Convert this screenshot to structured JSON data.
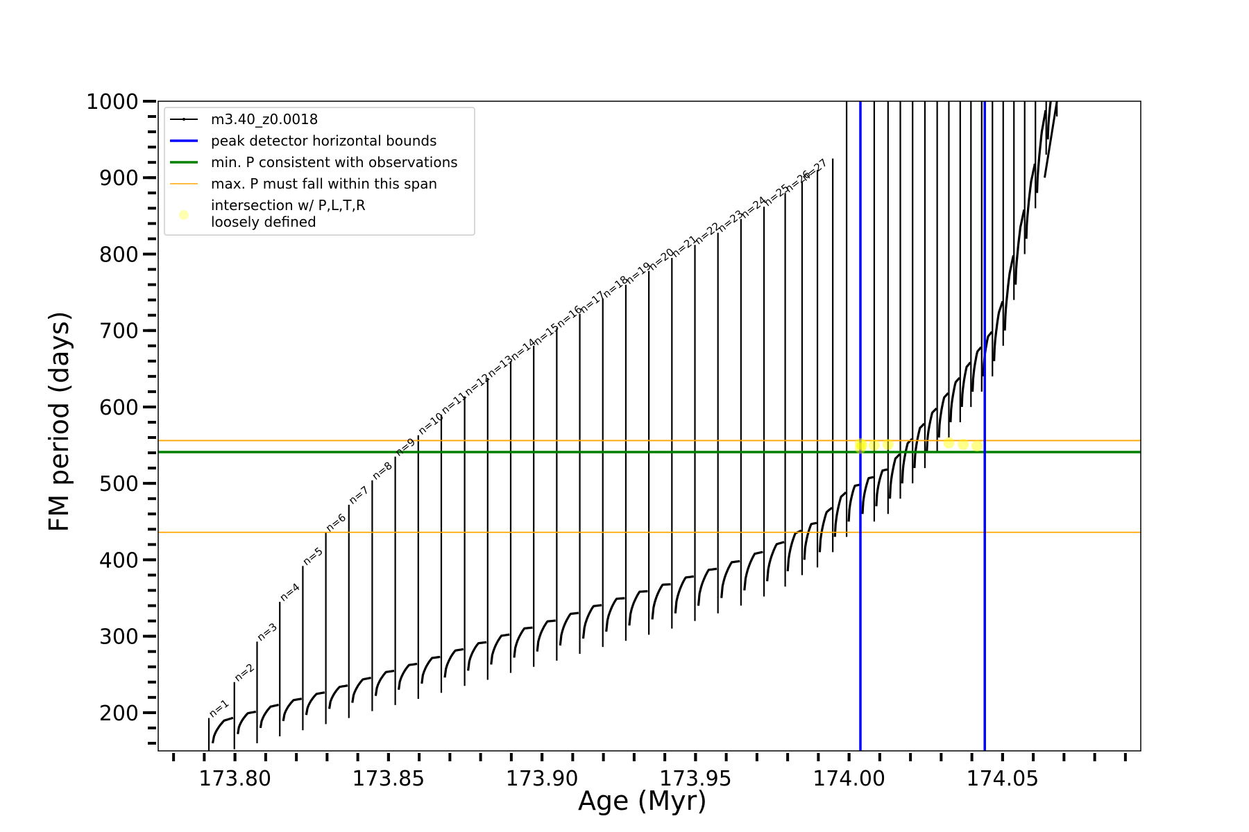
{
  "chart_data": {
    "type": "line",
    "xlabel": "Age (Myr)",
    "ylabel": "FM period (days)",
    "xlim": [
      173.775,
      174.095
    ],
    "ylim": [
      150,
      1000
    ],
    "x_ticks": [
      "173.80",
      "173.85",
      "173.90",
      "173.95",
      "174.00",
      "174.05"
    ],
    "x_tick_values": [
      173.8,
      173.85,
      173.9,
      173.95,
      174.0,
      174.05
    ],
    "y_ticks": [
      "200",
      "300",
      "400",
      "500",
      "600",
      "700",
      "800",
      "900",
      "1000"
    ],
    "y_tick_values": [
      200,
      300,
      400,
      500,
      600,
      700,
      800,
      900,
      1000
    ],
    "series": [
      {
        "name": "m3.40_z0.0018",
        "color": "#000000",
        "pulse_ages": [
          173.7915,
          173.7998,
          173.8072,
          173.8146,
          173.8221,
          173.8296,
          173.8371,
          173.8447,
          173.8522,
          173.8597,
          173.8672,
          173.8748,
          173.8823,
          173.8898,
          173.8973,
          173.9048,
          173.9123,
          173.9198,
          173.9273,
          173.9348,
          173.9423,
          173.9498,
          173.9573,
          173.9648,
          173.9723,
          173.9792,
          173.9847,
          173.9897,
          173.9947,
          173.9992,
          174.0037,
          174.0082,
          174.0127,
          174.0167,
          174.0207,
          174.0247,
          174.0287,
          174.0325,
          174.0362,
          174.0397,
          174.0432,
          174.0467,
          174.0502,
          174.0537,
          174.0572,
          174.0607,
          174.0642,
          174.0677
        ],
        "pulse_base_period": [
          160,
          172,
          180,
          189,
          197,
          205,
          213,
          222,
          230,
          238,
          246,
          255,
          263,
          272,
          280,
          288,
          297,
          306,
          314,
          322,
          330,
          340,
          350,
          360,
          372,
          385,
          400,
          410,
          430,
          450,
          460,
          470,
          480,
          500,
          520,
          540,
          560,
          580,
          600,
          620,
          640,
          660,
          700,
          760,
          820,
          880,
          950,
          1000
        ],
        "pulse_peak_period": [
          193,
          240,
          293,
          345,
          392,
          436,
          472,
          504,
          535,
          563,
          590,
          614,
          638,
          660,
          680,
          703,
          722,
          742,
          760,
          778,
          795,
          812,
          828,
          846,
          862,
          880,
          895,
          910,
          925,
          1000,
          1000,
          1000,
          1000,
          1000,
          1000,
          1000,
          1000,
          1000,
          1000,
          1000,
          1000,
          1000,
          1000,
          1000,
          1000,
          1000,
          1000,
          1000
        ]
      }
    ],
    "n_labels": [
      "n=1",
      "n=2",
      "n=3",
      "n=4",
      "n=5",
      "n=6",
      "n=7",
      "n=8",
      "n=9",
      "n=10",
      "n=11",
      "n=12",
      "n=13",
      "n=14",
      "n=15",
      "n=16",
      "n=17",
      "n=18",
      "n=19",
      "n=20",
      "n=21",
      "n=22",
      "n=23",
      "n=24",
      "n=25",
      "n=26",
      "n=27"
    ],
    "vertical_lines": {
      "name": "peak detector horizontal bounds",
      "color": "#0000ff",
      "x": [
        174.0037,
        174.0442
      ]
    },
    "min_period_line": {
      "name": "min. P consistent with observations",
      "color": "#008000",
      "y": 541
    },
    "max_period_span": {
      "name": "max. P must fall within this span",
      "color": "#ffa500",
      "y": [
        436,
        556
      ]
    },
    "intersections": {
      "name": "intersection w/ P,L,T,R\nloosely defined",
      "color": "#ffff00",
      "points": [
        {
          "x": 174.0037,
          "y": 552
        },
        {
          "x": 174.0037,
          "y": 546
        },
        {
          "x": 174.0042,
          "y": 550
        },
        {
          "x": 174.0082,
          "y": 550
        },
        {
          "x": 174.0127,
          "y": 551
        },
        {
          "x": 174.0325,
          "y": 553
        },
        {
          "x": 174.0372,
          "y": 551
        },
        {
          "x": 174.0417,
          "y": 549
        }
      ]
    },
    "legend_position": "upper-left",
    "grid": false
  }
}
